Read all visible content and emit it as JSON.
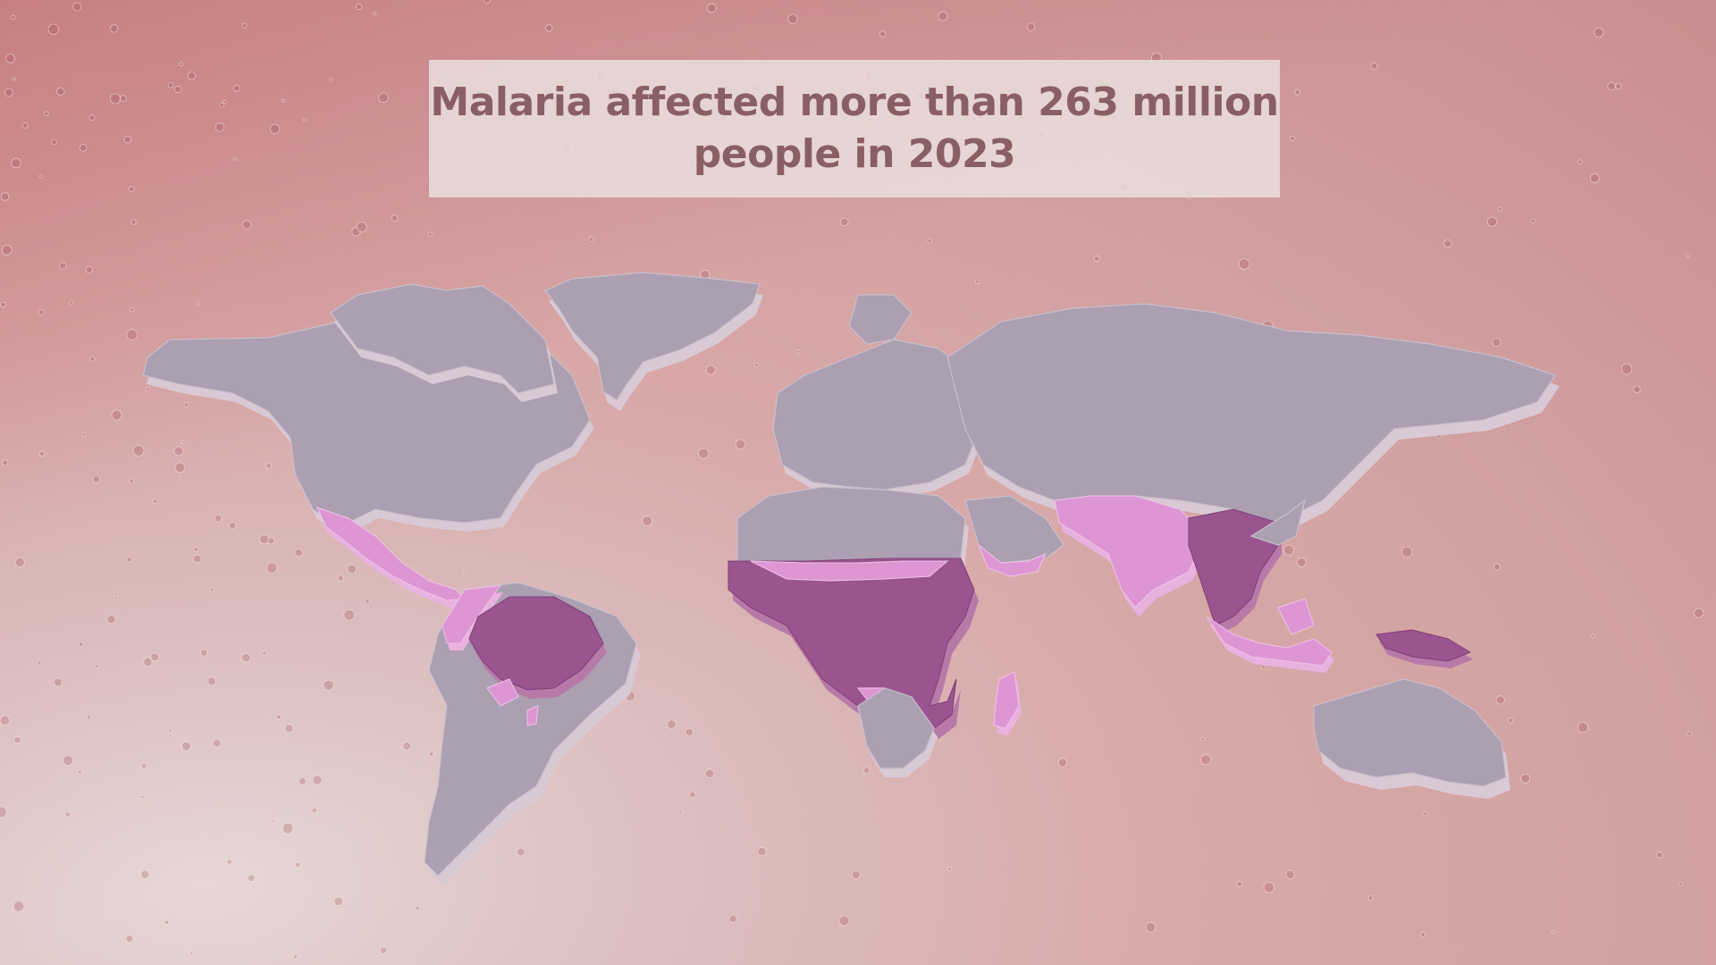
{
  "title": {
    "line1": "Malaria affected more than 263 million",
    "line2": "people in 2023"
  },
  "colors": {
    "background": "#d5a3a3",
    "land": "#ab9fb1",
    "malaria_high": "#9a5590",
    "malaria_low": "#dd95d4",
    "title_text": "#8a5f63",
    "title_box": "#ece2e2"
  },
  "map": {
    "projection": "world, 3D extruded countries",
    "regions": [
      {
        "name": "North America",
        "highlight": "none"
      },
      {
        "name": "Greenland",
        "highlight": "none"
      },
      {
        "name": "Central America",
        "highlight": "low"
      },
      {
        "name": "South America - Amazon",
        "highlight": "high"
      },
      {
        "name": "South America - southern",
        "highlight": "none"
      },
      {
        "name": "Europe",
        "highlight": "none"
      },
      {
        "name": "Russia and Central Asia",
        "highlight": "none"
      },
      {
        "name": "North Africa",
        "highlight": "none"
      },
      {
        "name": "Sub-Saharan Africa",
        "highlight": "high"
      },
      {
        "name": "Southern Africa",
        "highlight": "none"
      },
      {
        "name": "Madagascar",
        "highlight": "low"
      },
      {
        "name": "Arabian Peninsula",
        "highlight": "low"
      },
      {
        "name": "South Asia",
        "highlight": "low"
      },
      {
        "name": "Southeast Asia",
        "highlight": "high"
      },
      {
        "name": "Indonesia",
        "highlight": "low"
      },
      {
        "name": "Papua New Guinea",
        "highlight": "high"
      },
      {
        "name": "Australia",
        "highlight": "none"
      }
    ]
  }
}
